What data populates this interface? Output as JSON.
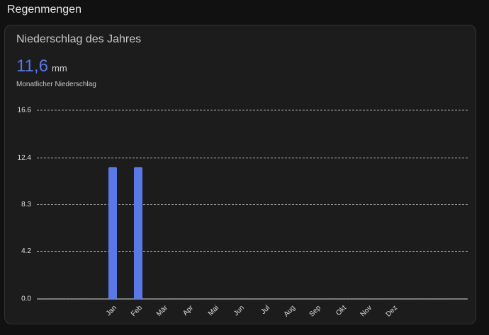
{
  "section_title": "Regenmengen",
  "card": {
    "title": "Niederschlag des Jahres",
    "value": "11,6",
    "unit": "mm",
    "label": "Monatlicher Niederschlag"
  },
  "chart_data": {
    "type": "bar",
    "categories": [
      "Jan",
      "Feb",
      "Mär",
      "Apr",
      "Mai",
      "Jun",
      "Jul",
      "Aug",
      "Sep",
      "Okt",
      "Nov",
      "Dez"
    ],
    "values": [
      11.6,
      11.6,
      null,
      null,
      null,
      null,
      null,
      null,
      null,
      null,
      null,
      null
    ],
    "color": "#5a78e6",
    "ylim": [
      0,
      16.6
    ],
    "yticks": [
      {
        "value": 0,
        "label": "0.0"
      },
      4.2,
      8.3,
      12.4,
      16.6
    ],
    "grid": true
  }
}
